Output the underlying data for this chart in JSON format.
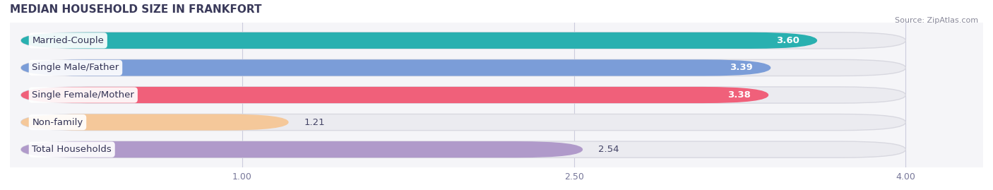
{
  "title": "MEDIAN HOUSEHOLD SIZE IN FRANKFORT",
  "source": "Source: ZipAtlas.com",
  "categories": [
    "Married-Couple",
    "Single Male/Father",
    "Single Female/Mother",
    "Non-family",
    "Total Households"
  ],
  "values": [
    3.6,
    3.39,
    3.38,
    1.21,
    2.54
  ],
  "bar_colors": [
    "#29b0b0",
    "#7b9dd8",
    "#f0607a",
    "#f5c89a",
    "#b09aca"
  ],
  "bar_edge_colors": [
    "#20a0a0",
    "#6080c0",
    "#d04060",
    "#d5a070",
    "#9070b0"
  ],
  "value_inside": [
    true,
    true,
    true,
    false,
    false
  ],
  "value_colors_inside": [
    "#ffffff",
    "#ffffff",
    "#ffffff",
    "#555555",
    "#555555"
  ],
  "xlim_start": 0,
  "xlim_end": 4.0,
  "xticks": [
    1.0,
    2.5,
    4.0
  ],
  "xtick_labels": [
    "1.00",
    "2.50",
    "4.00"
  ],
  "bg_color": "#f5f5f8",
  "bar_bg_color": "#ebebf0",
  "bar_bg_edge_color": "#d8d8e0",
  "label_fontsize": 9.5,
  "value_fontsize": 9.5,
  "title_fontsize": 11,
  "title_color": "#3a3a5a",
  "title_font": "Arial"
}
